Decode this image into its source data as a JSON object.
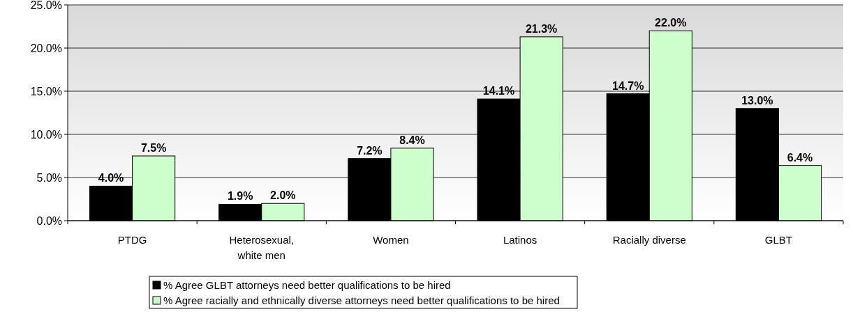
{
  "chart_data": {
    "type": "bar",
    "categories": [
      "PTDG",
      "Heterosexual, white men",
      "Women",
      "Latinos",
      "Racially diverse",
      "GLBT"
    ],
    "series": [
      {
        "name": "% Agree GLBT attorneys need better qualifications to be hired",
        "color": "#000000",
        "values": [
          4.0,
          1.9,
          7.2,
          14.1,
          14.7,
          13.0
        ],
        "value_labels": [
          "4.0%",
          "1.9%",
          "7.2%",
          "14.1%",
          "14.7%",
          "13.0%"
        ]
      },
      {
        "name": "% Agree racially and ethnically diverse attorneys need better qualifications to be hired",
        "color": "#ccffcc",
        "values": [
          7.5,
          2.0,
          8.4,
          21.3,
          22.0,
          6.4
        ],
        "value_labels": [
          "7.5%",
          "2.0%",
          "8.4%",
          "21.3%",
          "22.0%",
          "6.4%"
        ]
      }
    ],
    "ylim": [
      0,
      25
    ],
    "yticks": [
      {
        "value": 0,
        "label": "0.0%"
      },
      {
        "value": 5,
        "label": "5.0%"
      },
      {
        "value": 10,
        "label": "10.0%"
      },
      {
        "value": 15,
        "label": "15.0%"
      },
      {
        "value": 20,
        "label": "20.0%"
      },
      {
        "value": 25,
        "label": "25.0%"
      }
    ],
    "grid": "y",
    "legend": "bottom"
  }
}
